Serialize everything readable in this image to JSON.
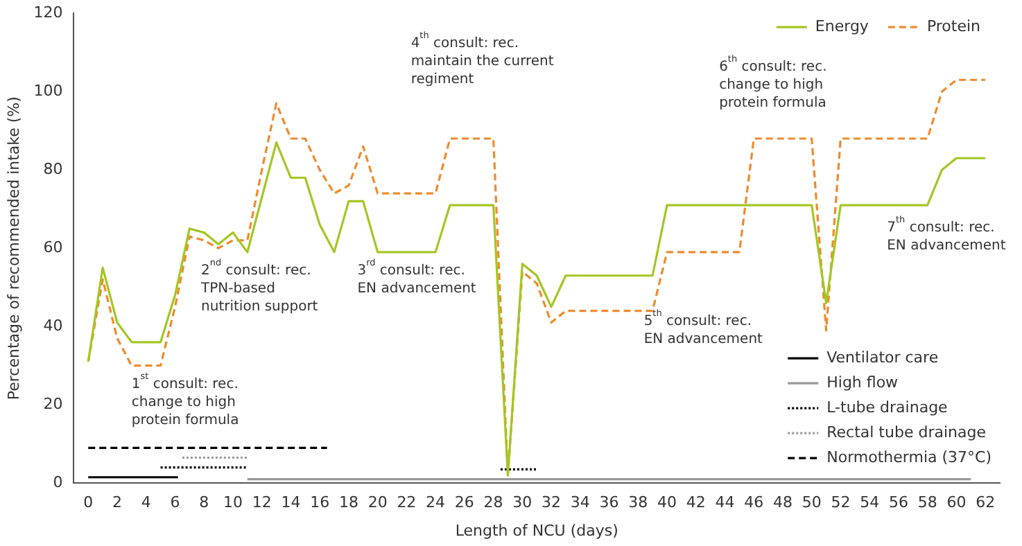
{
  "chart_data": {
    "type": "line",
    "xlabel": "Length of NCU (days)",
    "ylabel": "Percentage of recommended intake (%)",
    "x": [
      0,
      1,
      2,
      3,
      4,
      5,
      6,
      7,
      8,
      9,
      10,
      11,
      12,
      13,
      14,
      15,
      16,
      17,
      18,
      19,
      20,
      21,
      22,
      23,
      24,
      25,
      26,
      27,
      28,
      29,
      30,
      31,
      32,
      33,
      34,
      35,
      36,
      37,
      38,
      39,
      40,
      41,
      42,
      43,
      44,
      45,
      46,
      47,
      48,
      49,
      50,
      51,
      52,
      53,
      54,
      55,
      56,
      57,
      58,
      59,
      60,
      61,
      62
    ],
    "series": [
      {
        "name": "Energy",
        "color": "#a3c623",
        "line_style": "solid",
        "values": [
          31,
          55,
          41,
          36,
          36,
          36,
          48,
          65,
          64,
          61,
          64,
          59,
          73,
          87,
          78,
          78,
          66,
          59,
          72,
          72,
          59,
          59,
          59,
          59,
          59,
          71,
          71,
          71,
          71,
          2,
          56,
          53,
          45,
          53,
          53,
          53,
          53,
          53,
          53,
          53,
          71,
          71,
          71,
          71,
          71,
          71,
          71,
          71,
          71,
          71,
          71,
          46,
          71,
          71,
          71,
          71,
          71,
          71,
          71,
          80,
          83,
          83,
          83
        ]
      },
      {
        "name": "Protein",
        "color": "#f08a2c",
        "line_style": "dashed",
        "values": [
          31,
          52,
          37,
          30,
          30,
          30,
          45,
          63,
          62,
          60,
          62,
          62,
          80,
          97,
          88,
          88,
          80,
          74,
          76,
          86,
          74,
          74,
          74,
          74,
          74,
          88,
          88,
          88,
          88,
          2,
          54,
          51,
          41,
          44,
          44,
          44,
          44,
          44,
          44,
          44,
          59,
          59,
          59,
          59,
          59,
          59,
          88,
          88,
          88,
          88,
          88,
          39,
          88,
          88,
          88,
          88,
          88,
          88,
          88,
          100,
          103,
          103,
          103
        ]
      },
      {
        "name": "Ventilator care",
        "color": "#000000",
        "line_style": "solid",
        "x": [
          0,
          6.2
        ],
        "values": [
          1.5,
          1.5
        ]
      },
      {
        "name": "High flow",
        "color": "#999999",
        "line_style": "solid",
        "x": [
          11,
          61
        ],
        "values": [
          1,
          1
        ]
      },
      {
        "name": "L-tube drainage",
        "color": "#000000",
        "line_style": "dotted",
        "x": [
          5,
          11
        ],
        "values": [
          4,
          4
        ]
      },
      {
        "name": null,
        "color": "#000000",
        "line_style": "dotted",
        "x": [
          28.5,
          31
        ],
        "values": [
          3.5,
          3.5
        ]
      },
      {
        "name": "Rectal tube drainage",
        "color": "#999999",
        "line_style": "dotted",
        "x": [
          6.5,
          11
        ],
        "values": [
          6.5,
          6.5
        ]
      },
      {
        "name": "Normothermia (37°C)",
        "color": "#000000",
        "line_style": "dashed",
        "x": [
          0,
          16.5
        ],
        "values": [
          9,
          9
        ]
      }
    ],
    "xlim": [
      -1,
      63
    ],
    "xticks": [
      0,
      2,
      4,
      6,
      8,
      10,
      12,
      14,
      16,
      18,
      20,
      22,
      24,
      26,
      28,
      30,
      32,
      34,
      36,
      38,
      40,
      42,
      44,
      46,
      48,
      50,
      52,
      54,
      56,
      58,
      60,
      62
    ],
    "ylim": [
      0,
      120
    ],
    "yticks": [
      0,
      20,
      40,
      60,
      80,
      100,
      120
    ],
    "grid": false,
    "legend": "top right",
    "marker": "none",
    "annotations": [
      "1$^{st}$ consult: rec.\nchange to high\nprotein formula",
      "2$^{nd}$ consult: rec.\nTPN-based\nnutrition support",
      "3$^{rd}$ consult: rec.\nEN advancement",
      "4$^{th}$ consult: rec.\nmaintain the current\nregiment",
      "5$^{th}$ consult: rec.\nEN advancement",
      "6$^{th}$ consult: rec.\nchange to high\nprotein formula",
      "7$^{th}$ consult: rec.\nEN advancement"
    ]
  }
}
